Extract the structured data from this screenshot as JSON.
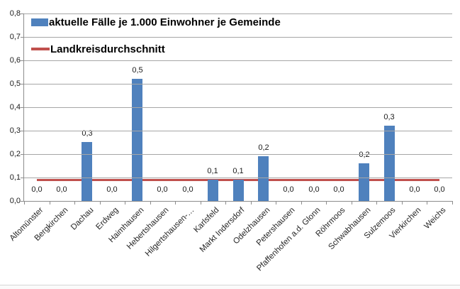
{
  "chart_data": {
    "type": "bar",
    "title": "",
    "xlabel": "",
    "ylabel": "",
    "categories": [
      "Altomünster",
      "Bergkirchen",
      "Dachau",
      "Erdweg",
      "Haimhausen",
      "Hebertshausen",
      "Hilgertshausen-…",
      "Karlsfeld",
      "Markt Indersdorf",
      "Odelzhausen",
      "Petershausen",
      "Pfaffenhofen a.d. Glonn",
      "Röhrmoos",
      "Schwabhausen",
      "Sulzemoos",
      "Vierkirchen",
      "Weichs"
    ],
    "series": [
      {
        "name": "aktuelle Fälle je 1.000 Einwohner je Gemeinde",
        "type": "bar",
        "color": "#4F81BD",
        "values": [
          0.0,
          0.0,
          0.25,
          0.0,
          0.52,
          0.0,
          0.0,
          0.09,
          0.09,
          0.19,
          0.0,
          0.0,
          0.0,
          0.16,
          0.32,
          0.0,
          0.0
        ],
        "data_labels": [
          "0,0",
          "0,0",
          "0,3",
          "0,0",
          "0,5",
          "0,0",
          "0,0",
          "0,1",
          "0,1",
          "0,2",
          "0,0",
          "0,0",
          "0,0",
          "0,2",
          "0,3",
          "0,0",
          "0,0"
        ]
      },
      {
        "name": "Landkreisdurchschnitt",
        "type": "line",
        "color": "#C0504D",
        "value": 0.09
      }
    ],
    "ylim": [
      0,
      0.8
    ],
    "ytick_step": 0.1,
    "ytick_labels": [
      "0,0",
      "0,1",
      "0,2",
      "0,3",
      "0,4",
      "0,5",
      "0,6",
      "0,7",
      "0,8"
    ],
    "decimal_separator": ",",
    "grid": true,
    "legend_position": "top-left-inside"
  },
  "colors": {
    "bar": "#4F81BD",
    "average_line": "#C0504D",
    "gridline": "#A6A6A6",
    "axis": "#8C8C8C",
    "text": "#1A1A1A",
    "background": "#FFFFFF"
  }
}
